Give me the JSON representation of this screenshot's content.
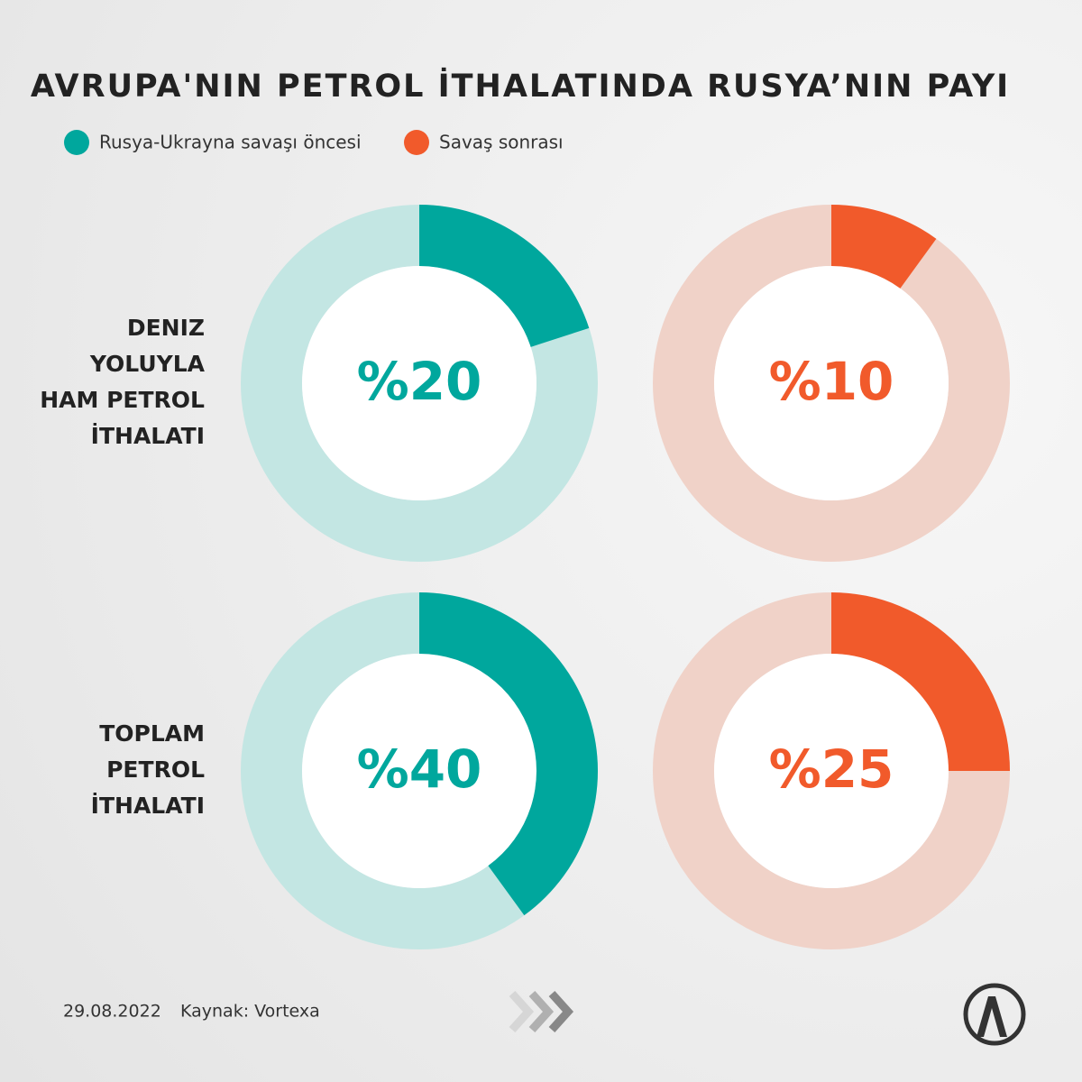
{
  "chart_data": {
    "type": "donut",
    "title": "AVRUPA'NIN PETROL İTHALATINDA RUSYA’NIN PAYI",
    "categories": [
      [
        "DENIZ",
        "YOLUYLA",
        "HAM PETROL",
        "İTHALATI"
      ],
      [
        "TOPLAM",
        "PETROL",
        "İTHALATI"
      ]
    ],
    "series": [
      {
        "name": "Rusya-Ukrayna savaşı öncesi",
        "color": "#00a79d",
        "track_color": "#c3e6e3",
        "values": [
          20,
          40
        ],
        "value_labels": [
          "%20",
          "%40"
        ]
      },
      {
        "name": "Savaş sonrası",
        "color": "#f15a2b",
        "track_color": "#f0d2c8",
        "values": [
          10,
          25
        ],
        "value_labels": [
          "%10",
          "%25"
        ]
      }
    ]
  },
  "footer": {
    "date": "29.08.2022",
    "source": "Kaynak: Vortexa"
  }
}
